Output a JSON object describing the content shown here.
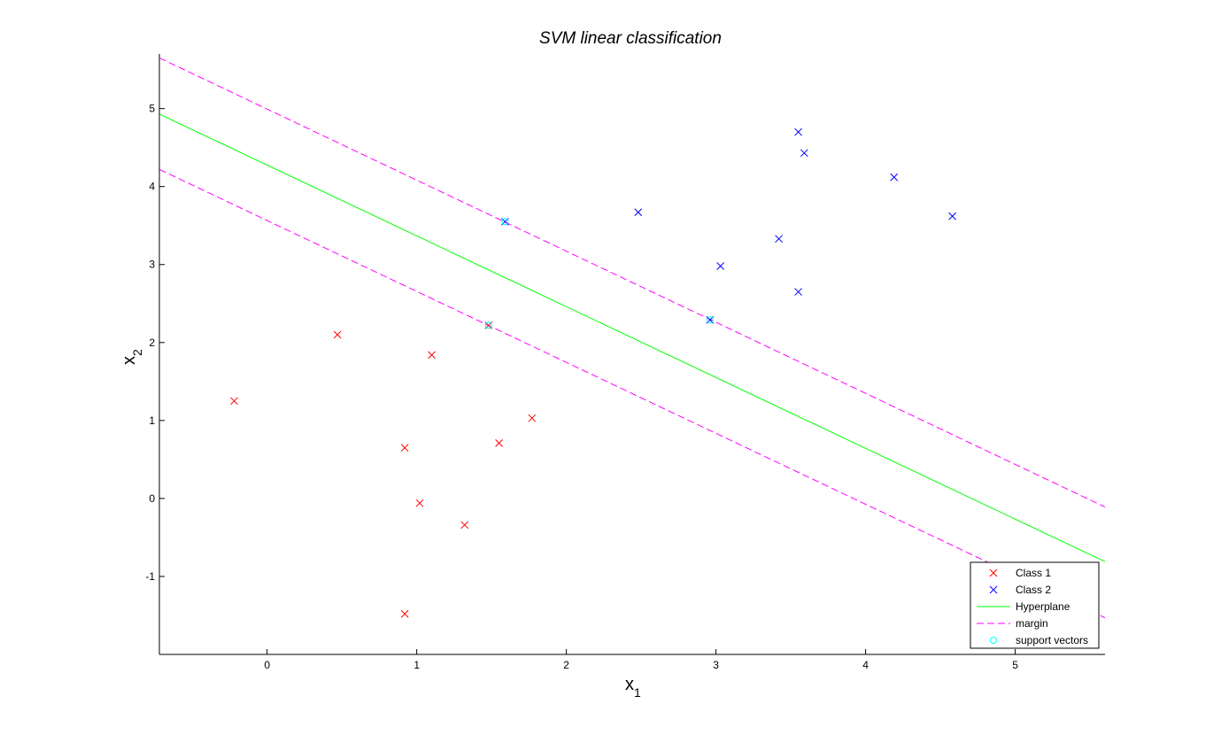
{
  "chart_data": {
    "type": "scatter",
    "title": "SVM linear classification",
    "xlabel": {
      "base": "x",
      "sub": "1"
    },
    "ylabel": {
      "base": "x",
      "sub": "2"
    },
    "xlim": [
      -0.72,
      5.6
    ],
    "ylim": [
      -2.0,
      5.7
    ],
    "xticks": [
      0,
      1,
      2,
      3,
      4,
      5
    ],
    "yticks": [
      -1,
      0,
      1,
      2,
      3,
      4,
      5
    ],
    "grid": false,
    "legend_position": "bottom-right",
    "series": [
      {
        "name": "Class 1",
        "marker": "x",
        "color": "#ff0000",
        "points": [
          {
            "x": -0.22,
            "y": 1.25
          },
          {
            "x": 0.47,
            "y": 2.1
          },
          {
            "x": 0.92,
            "y": 0.65
          },
          {
            "x": 1.02,
            "y": -0.06
          },
          {
            "x": 1.1,
            "y": 1.84
          },
          {
            "x": 1.32,
            "y": -0.34
          },
          {
            "x": 1.55,
            "y": 0.71
          },
          {
            "x": 1.77,
            "y": 1.03
          },
          {
            "x": 0.92,
            "y": -1.48
          },
          {
            "x": 1.48,
            "y": 2.22
          }
        ]
      },
      {
        "name": "Class 2",
        "marker": "x",
        "color": "#0000ff",
        "points": [
          {
            "x": 1.59,
            "y": 3.55
          },
          {
            "x": 2.48,
            "y": 3.67
          },
          {
            "x": 2.96,
            "y": 2.29
          },
          {
            "x": 3.03,
            "y": 2.98
          },
          {
            "x": 3.42,
            "y": 3.33
          },
          {
            "x": 3.55,
            "y": 4.7
          },
          {
            "x": 3.59,
            "y": 4.43
          },
          {
            "x": 3.55,
            "y": 2.65
          },
          {
            "x": 4.19,
            "y": 4.12
          },
          {
            "x": 4.58,
            "y": 3.62
          }
        ]
      },
      {
        "name": "Hyperplane",
        "style": "line",
        "color": "#00ff00",
        "points": [
          {
            "x": -0.72,
            "y": 4.93
          },
          {
            "x": 5.6,
            "y": -0.81
          }
        ]
      },
      {
        "name": "margin",
        "style": "dashed",
        "color": "#ff00ff",
        "lines": [
          [
            {
              "x": -0.72,
              "y": 5.65
            },
            {
              "x": 5.6,
              "y": -0.11
            }
          ],
          [
            {
              "x": -0.72,
              "y": 4.22
            },
            {
              "x": 5.6,
              "y": -1.53
            }
          ]
        ]
      },
      {
        "name": "support vectors",
        "marker": "circle",
        "color": "#00ffff",
        "points": [
          {
            "x": 1.59,
            "y": 3.55
          },
          {
            "x": 2.96,
            "y": 2.29
          },
          {
            "x": 1.48,
            "y": 2.22
          }
        ]
      }
    ]
  }
}
